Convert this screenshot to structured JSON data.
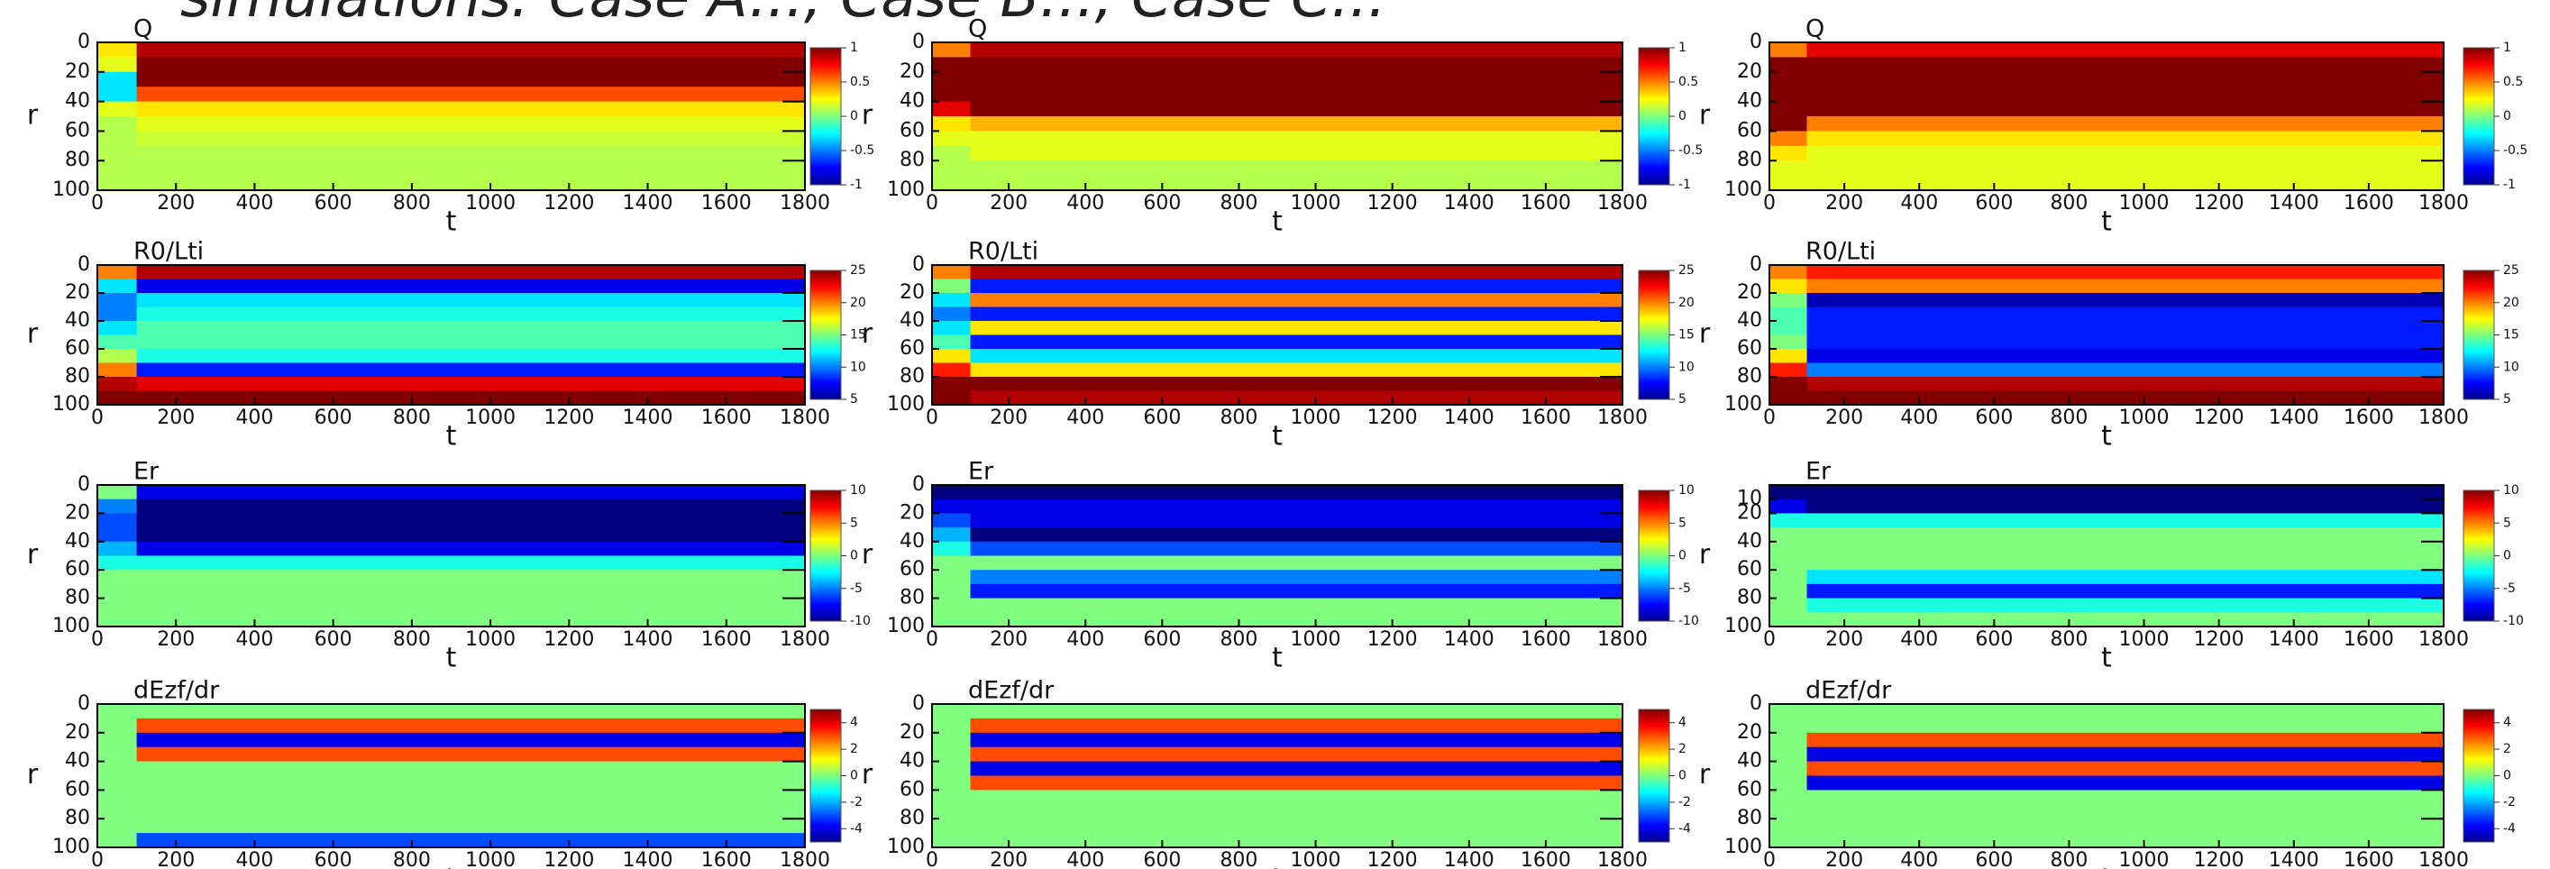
{
  "header": {
    "title": "simulations: Case A..., Case B..., Case C..."
  },
  "chart_data": [
    {
      "type": "heatmap",
      "title": "Q",
      "xlabel": "t",
      "ylabel": "r",
      "xbins": [
        0,
        100,
        1800
      ],
      "ybins": [
        0,
        10,
        20,
        30,
        40,
        50,
        60,
        70,
        80,
        90,
        100
      ],
      "z": [
        [
          0.3,
          0.9
        ],
        [
          0.2,
          1
        ],
        [
          -0.3,
          1
        ],
        [
          -0.3,
          0.6
        ],
        [
          0.2,
          0.3
        ],
        [
          0.1,
          0.2
        ],
        [
          0.1,
          0.15
        ],
        [
          0.1,
          0.1
        ],
        [
          0.1,
          0.1
        ],
        [
          0.1,
          0.1
        ]
      ],
      "xlim": [
        0,
        1800
      ],
      "ylim": [
        100,
        0
      ],
      "xticks": [
        0,
        200,
        400,
        600,
        800,
        1000,
        1200,
        1400,
        1600,
        1800
      ],
      "yticks": [
        0,
        20,
        40,
        60,
        80,
        100
      ],
      "clim": [
        -1,
        1
      ],
      "cticks": [
        1,
        0.5,
        0,
        -0.5,
        -1
      ]
    },
    {
      "type": "heatmap",
      "title": "Q",
      "xlabel": "t",
      "ylabel": "r",
      "xbins": [
        0,
        100,
        1800
      ],
      "ybins": [
        0,
        10,
        20,
        30,
        40,
        50,
        60,
        70,
        80,
        90,
        100
      ],
      "z": [
        [
          0.5,
          0.9
        ],
        [
          1,
          1
        ],
        [
          1,
          1
        ],
        [
          1,
          1
        ],
        [
          0.8,
          1
        ],
        [
          0.3,
          0.4
        ],
        [
          0.2,
          0.2
        ],
        [
          0.1,
          0.2
        ],
        [
          0.1,
          0.1
        ],
        [
          0.1,
          0.1
        ]
      ],
      "xlim": [
        0,
        1800
      ],
      "ylim": [
        100,
        0
      ],
      "xticks": [
        0,
        200,
        400,
        600,
        800,
        1000,
        1200,
        1400,
        1600,
        1800
      ],
      "yticks": [
        0,
        20,
        40,
        60,
        80,
        100
      ],
      "clim": [
        -1,
        1
      ],
      "cticks": [
        1,
        0.5,
        0,
        -0.5,
        -1
      ]
    },
    {
      "type": "heatmap",
      "title": "Q",
      "xlabel": "t",
      "ylabel": "r",
      "xbins": [
        0,
        100,
        1800
      ],
      "ybins": [
        0,
        10,
        20,
        30,
        40,
        50,
        60,
        70,
        80,
        90,
        100
      ],
      "z": [
        [
          0.5,
          0.8
        ],
        [
          1,
          1
        ],
        [
          1,
          1
        ],
        [
          1,
          1
        ],
        [
          1,
          1
        ],
        [
          1,
          0.5
        ],
        [
          0.5,
          0.3
        ],
        [
          0.3,
          0.2
        ],
        [
          0.2,
          0.2
        ],
        [
          0.2,
          0.2
        ]
      ],
      "xlim": [
        0,
        1800
      ],
      "ylim": [
        100,
        0
      ],
      "xticks": [
        0,
        200,
        400,
        600,
        800,
        1000,
        1200,
        1400,
        1600,
        1800
      ],
      "yticks": [
        0,
        20,
        40,
        60,
        80,
        100
      ],
      "clim": [
        -1,
        1
      ],
      "cticks": [
        1,
        0.5,
        0,
        -0.5,
        -1
      ]
    },
    {
      "type": "heatmap",
      "title": "R0/Lti",
      "xlabel": "t",
      "ylabel": "r",
      "xbins": [
        0,
        100,
        1800
      ],
      "ybins": [
        0,
        10,
        20,
        30,
        40,
        50,
        60,
        70,
        80,
        90,
        100
      ],
      "z": [
        [
          20,
          24
        ],
        [
          12,
          7
        ],
        [
          10,
          12
        ],
        [
          10,
          13
        ],
        [
          12,
          14
        ],
        [
          14,
          14
        ],
        [
          16,
          13
        ],
        [
          20,
          8
        ],
        [
          24,
          23
        ],
        [
          25,
          25
        ]
      ],
      "xlim": [
        0,
        1800
      ],
      "ylim": [
        100,
        0
      ],
      "xticks": [
        0,
        200,
        400,
        600,
        800,
        1000,
        1200,
        1400,
        1600,
        1800
      ],
      "yticks": [
        0,
        20,
        40,
        60,
        80,
        100
      ],
      "clim": [
        5,
        25
      ],
      "cticks": [
        25,
        20,
        15,
        10,
        5
      ]
    },
    {
      "type": "heatmap",
      "title": "R0/Lti",
      "xlabel": "t",
      "ylabel": "r",
      "xbins": [
        0,
        100,
        1800
      ],
      "ybins": [
        0,
        10,
        20,
        30,
        40,
        50,
        60,
        70,
        80,
        90,
        100
      ],
      "z": [
        [
          20,
          24
        ],
        [
          15,
          8
        ],
        [
          12,
          20
        ],
        [
          10,
          8
        ],
        [
          12,
          18
        ],
        [
          14,
          8
        ],
        [
          18,
          12
        ],
        [
          22,
          18
        ],
        [
          25,
          25
        ],
        [
          25,
          24
        ]
      ],
      "xlim": [
        0,
        1800
      ],
      "ylim": [
        100,
        0
      ],
      "xticks": [
        0,
        200,
        400,
        600,
        800,
        1000,
        1200,
        1400,
        1600,
        1800
      ],
      "yticks": [
        0,
        20,
        40,
        60,
        80,
        100
      ],
      "clim": [
        5,
        25
      ],
      "cticks": [
        25,
        20,
        15,
        10,
        5
      ]
    },
    {
      "type": "heatmap",
      "title": "R0/Lti",
      "xlabel": "t",
      "ylabel": "r",
      "xbins": [
        0,
        100,
        1800
      ],
      "ybins": [
        0,
        10,
        20,
        30,
        40,
        50,
        60,
        70,
        80,
        90,
        100
      ],
      "z": [
        [
          20,
          22
        ],
        [
          18,
          20
        ],
        [
          15,
          6
        ],
        [
          14,
          8
        ],
        [
          14,
          8
        ],
        [
          15,
          8
        ],
        [
          18,
          7
        ],
        [
          22,
          10
        ],
        [
          25,
          24
        ],
        [
          25,
          25
        ]
      ],
      "xlim": [
        0,
        1800
      ],
      "ylim": [
        100,
        0
      ],
      "xticks": [
        0,
        200,
        400,
        600,
        800,
        1000,
        1200,
        1400,
        1600,
        1800
      ],
      "yticks": [
        0,
        20,
        40,
        60,
        80,
        100
      ],
      "clim": [
        5,
        25
      ],
      "cticks": [
        25,
        20,
        15,
        10,
        5
      ]
    },
    {
      "type": "heatmap",
      "title": "Er",
      "xlabel": "t",
      "ylabel": "r",
      "xbins": [
        0,
        100,
        1800
      ],
      "ybins": [
        0,
        10,
        20,
        30,
        40,
        50,
        60,
        70,
        80,
        90,
        100
      ],
      "z": [
        [
          0,
          -8
        ],
        [
          -5,
          -10
        ],
        [
          -6,
          -10
        ],
        [
          -6,
          -10
        ],
        [
          -4,
          -8
        ],
        [
          -2,
          -2
        ],
        [
          0,
          0
        ],
        [
          0,
          0
        ],
        [
          0,
          0
        ],
        [
          0,
          0
        ]
      ],
      "xlim": [
        0,
        1800
      ],
      "ylim": [
        100,
        0
      ],
      "xticks": [
        0,
        200,
        400,
        600,
        800,
        1000,
        1200,
        1400,
        1600,
        1800
      ],
      "yticks": [
        0,
        20,
        40,
        60,
        80,
        100
      ],
      "clim": [
        -10,
        10
      ],
      "cticks": [
        10,
        5,
        0,
        -5,
        -10
      ]
    },
    {
      "type": "heatmap",
      "title": "Er",
      "xlabel": "t",
      "ylabel": "r",
      "xbins": [
        0,
        100,
        1800
      ],
      "ybins": [
        0,
        10,
        20,
        30,
        40,
        50,
        60,
        70,
        80,
        90,
        100
      ],
      "z": [
        [
          -10,
          -10
        ],
        [
          -8,
          -8
        ],
        [
          -6,
          -8
        ],
        [
          -4,
          -10
        ],
        [
          -2,
          -6
        ],
        [
          0,
          0
        ],
        [
          0,
          -5
        ],
        [
          0,
          -7
        ],
        [
          0,
          0
        ],
        [
          0,
          0
        ]
      ],
      "xlim": [
        0,
        1800
      ],
      "ylim": [
        100,
        0
      ],
      "xticks": [
        0,
        200,
        400,
        600,
        800,
        1000,
        1200,
        1400,
        1600,
        1800
      ],
      "yticks": [
        0,
        20,
        40,
        60,
        80,
        100
      ],
      "clim": [
        -10,
        10
      ],
      "cticks": [
        10,
        5,
        0,
        -5,
        -10
      ]
    },
    {
      "type": "heatmap",
      "title": "Er",
      "xlabel": "t",
      "ylabel": "r",
      "xbins": [
        0,
        100,
        1800
      ],
      "ybins": [
        0,
        10,
        20,
        30,
        40,
        50,
        60,
        70,
        80,
        90,
        100
      ],
      "z": [
        [
          -10,
          -10
        ],
        [
          -8,
          -10
        ],
        [
          -2,
          -2
        ],
        [
          0,
          0
        ],
        [
          0,
          0
        ],
        [
          0,
          0
        ],
        [
          0,
          -3
        ],
        [
          0,
          -7
        ],
        [
          0,
          -2
        ],
        [
          0,
          0
        ]
      ],
      "xlim": [
        0,
        1800
      ],
      "ylim": [
        100,
        0
      ],
      "xticks": [
        0,
        200,
        400,
        600,
        800,
        1000,
        1200,
        1400,
        1600,
        1800
      ],
      "yticks": [
        10,
        20,
        40,
        60,
        80,
        100
      ],
      "clim": [
        -10,
        10
      ],
      "cticks": [
        10,
        5,
        0,
        -5,
        -10
      ]
    },
    {
      "type": "heatmap",
      "title": "dEzf/dr",
      "xlabel": "t",
      "ylabel": "r",
      "xbins": [
        0,
        100,
        1800
      ],
      "ybins": [
        0,
        10,
        20,
        30,
        40,
        50,
        60,
        70,
        80,
        90,
        100
      ],
      "z": [
        [
          0,
          0
        ],
        [
          0,
          3
        ],
        [
          0,
          -4
        ],
        [
          0,
          3
        ],
        [
          0,
          0
        ],
        [
          0,
          0
        ],
        [
          0,
          0
        ],
        [
          0,
          0
        ],
        [
          0,
          0
        ],
        [
          0,
          -3
        ]
      ],
      "xlim": [
        0,
        1800
      ],
      "ylim": [
        100,
        0
      ],
      "xticks": [
        0,
        200,
        400,
        600,
        800,
        1000,
        1200,
        1400,
        1600,
        1800
      ],
      "yticks": [
        0,
        20,
        40,
        60,
        80,
        100
      ],
      "clim": [
        -5,
        5
      ],
      "cticks": [
        4,
        2,
        0,
        -2,
        -4
      ]
    },
    {
      "type": "heatmap",
      "title": "dEzf/dr",
      "xlabel": "t",
      "ylabel": "r",
      "xbins": [
        0,
        100,
        1800
      ],
      "ybins": [
        0,
        10,
        20,
        30,
        40,
        50,
        60,
        70,
        80,
        90,
        100
      ],
      "z": [
        [
          0,
          0
        ],
        [
          0,
          3
        ],
        [
          0,
          -4
        ],
        [
          0,
          3
        ],
        [
          0,
          -4
        ],
        [
          0,
          3
        ],
        [
          0,
          0
        ],
        [
          0,
          0
        ],
        [
          0,
          0
        ],
        [
          0,
          0
        ]
      ],
      "xlim": [
        0,
        1800
      ],
      "ylim": [
        100,
        0
      ],
      "xticks": [
        0,
        200,
        400,
        600,
        800,
        1000,
        1200,
        1400,
        1600,
        1800
      ],
      "yticks": [
        0,
        20,
        40,
        60,
        80,
        100
      ],
      "clim": [
        -5,
        5
      ],
      "cticks": [
        4,
        2,
        0,
        -2,
        -4
      ]
    },
    {
      "type": "heatmap",
      "title": "dEzf/dr",
      "xlabel": "t",
      "ylabel": "r",
      "xbins": [
        0,
        100,
        1800
      ],
      "ybins": [
        0,
        10,
        20,
        30,
        40,
        50,
        60,
        70,
        80,
        90,
        100
      ],
      "z": [
        [
          0,
          0
        ],
        [
          0,
          0
        ],
        [
          0,
          3
        ],
        [
          0,
          -4
        ],
        [
          0,
          3
        ],
        [
          0,
          -4
        ],
        [
          0,
          0
        ],
        [
          0,
          0
        ],
        [
          0,
          0
        ],
        [
          0,
          0
        ]
      ],
      "xlim": [
        0,
        1800
      ],
      "ylim": [
        100,
        0
      ],
      "xticks": [
        0,
        200,
        400,
        600,
        800,
        1000,
        1200,
        1400,
        1600,
        1800
      ],
      "yticks": [
        0,
        20,
        40,
        60,
        80,
        100
      ],
      "clim": [
        -5,
        5
      ],
      "cticks": [
        4,
        2,
        0,
        -2,
        -4
      ]
    }
  ]
}
